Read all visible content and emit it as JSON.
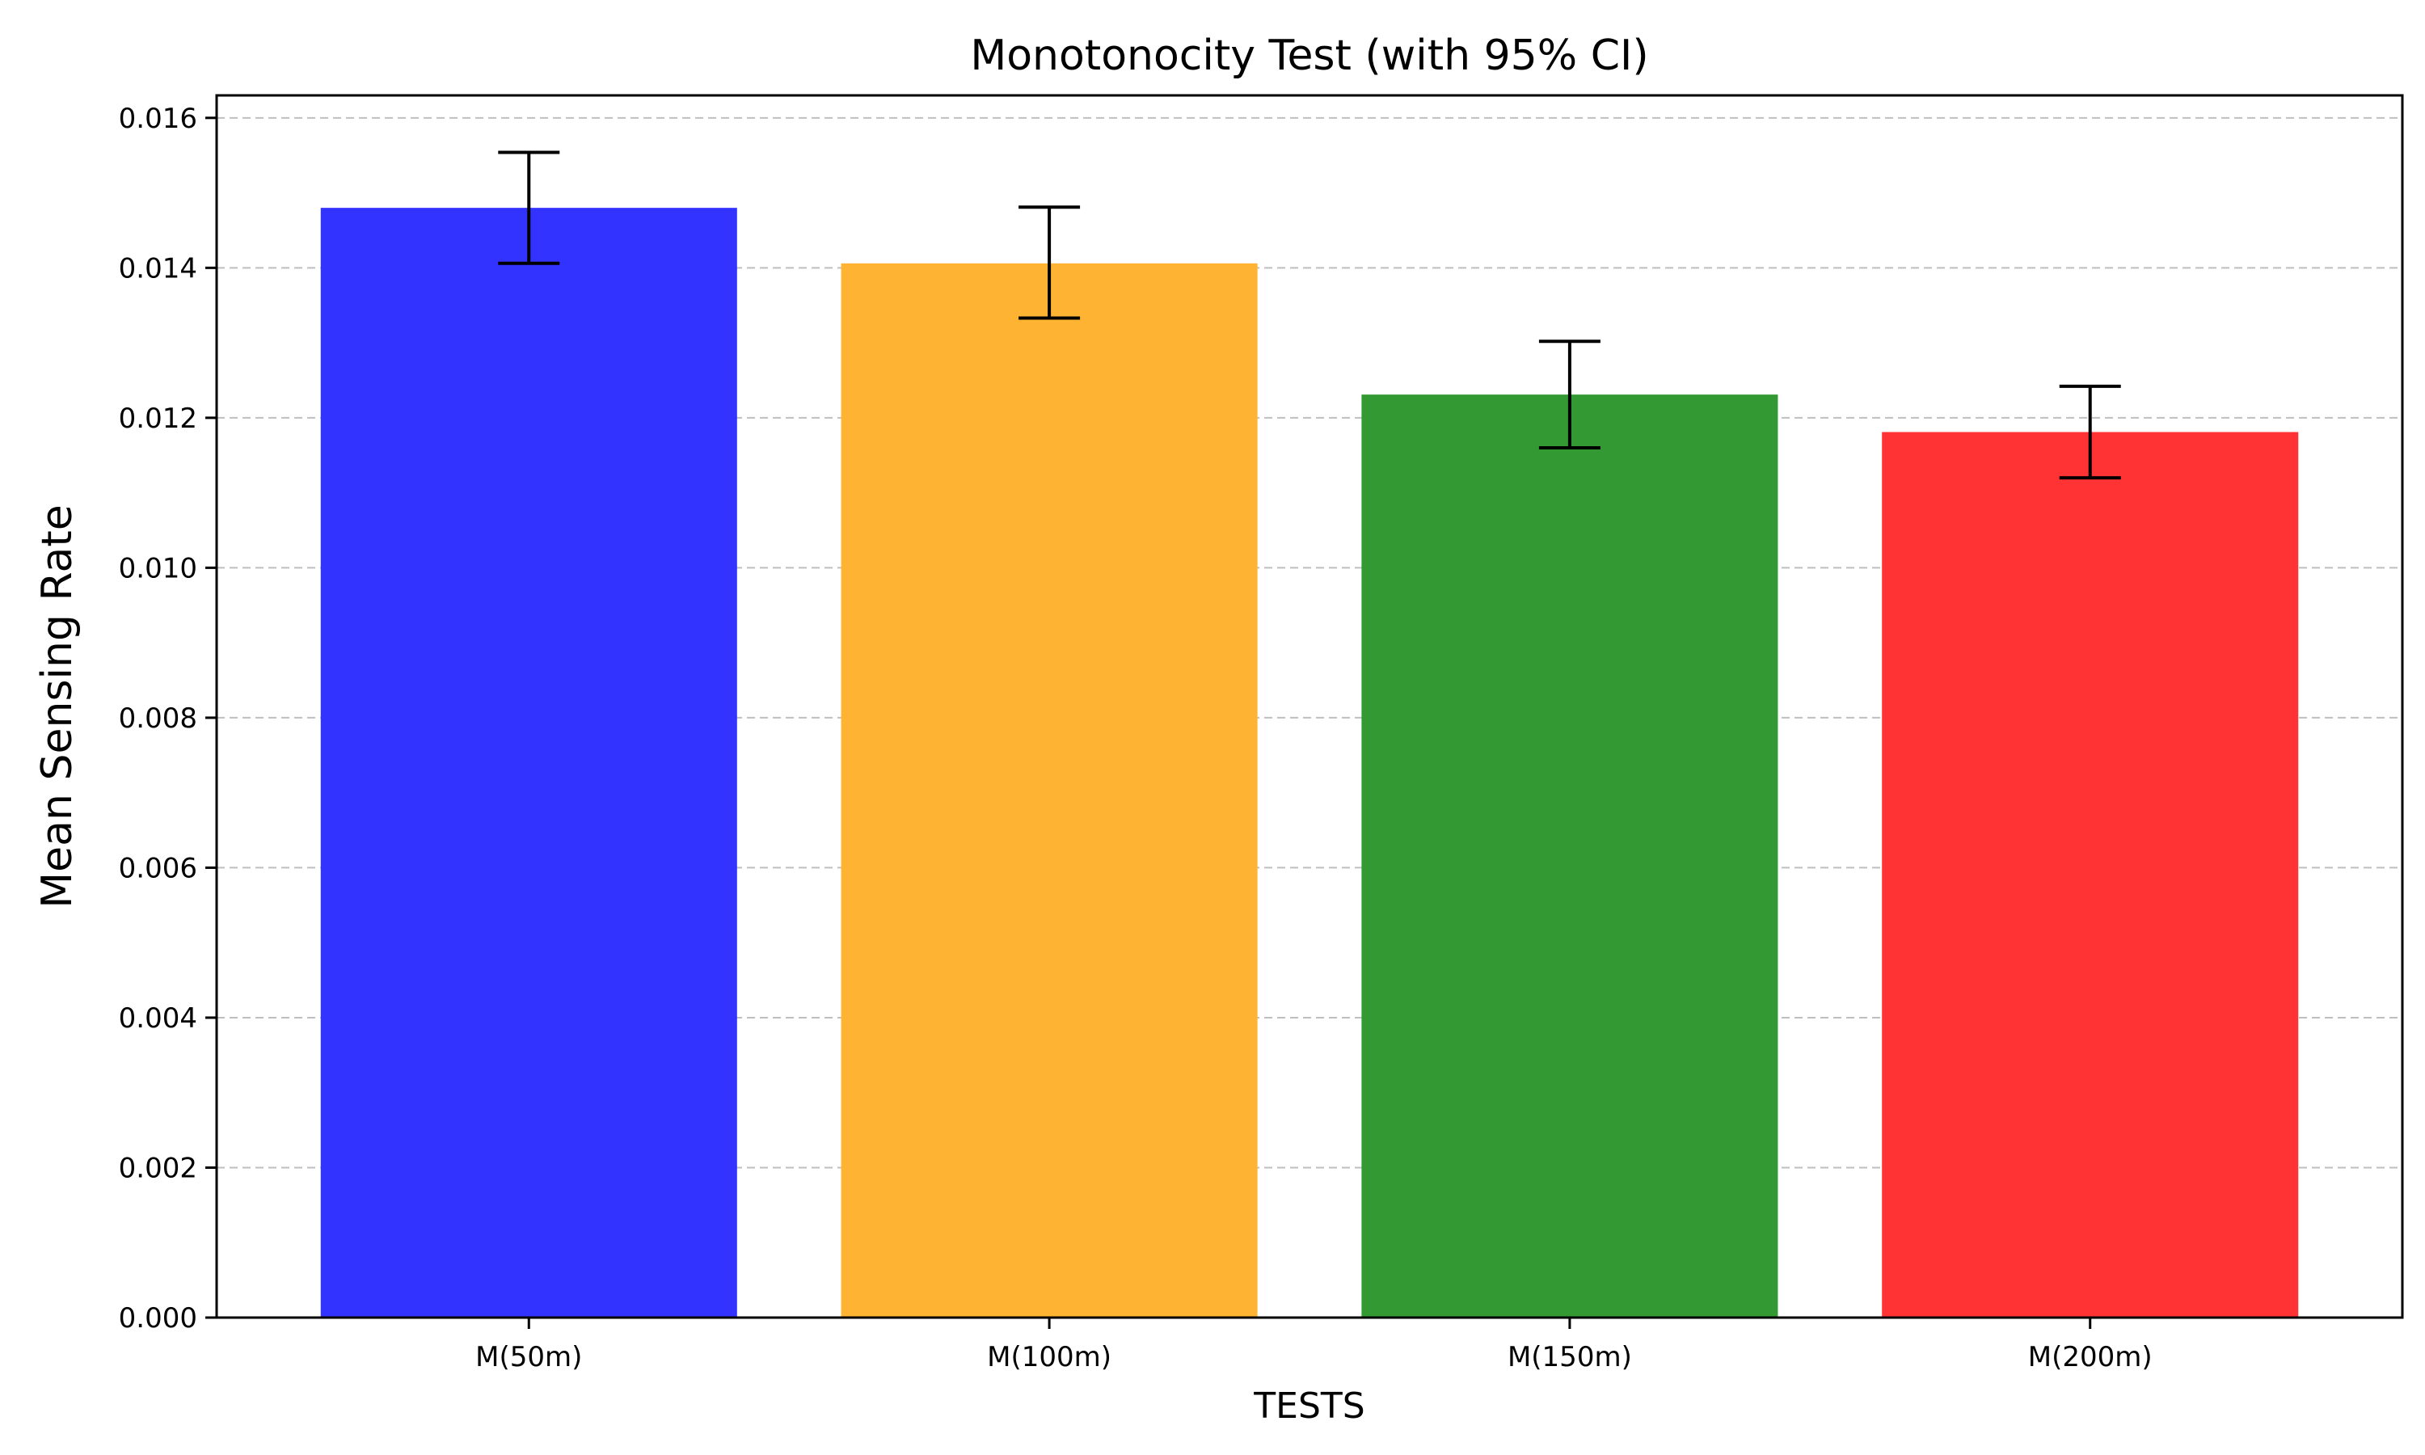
{
  "chart_data": {
    "type": "bar",
    "title": "Monotonocity Test (with 95% CI)",
    "xlabel": "TESTS",
    "ylabel": "Mean Sensing Rate",
    "categories": [
      "M(50m)",
      "M(100m)",
      "M(150m)",
      "M(200m)"
    ],
    "values": [
      0.0148,
      0.01406,
      0.01231,
      0.01181
    ],
    "ci_lower": [
      0.01406,
      0.01333,
      0.0116,
      0.0112
    ],
    "ci_upper": [
      0.01554,
      0.01481,
      0.01302,
      0.01242
    ],
    "colors": [
      "#3333ff",
      "#ffb333",
      "#339933",
      "#ff3333"
    ],
    "ylim": [
      0,
      0.0163
    ],
    "yticks": [
      0.0,
      0.002,
      0.004,
      0.006,
      0.008,
      0.01,
      0.012,
      0.014,
      0.016
    ],
    "ytick_labels": [
      "0.000",
      "0.002",
      "0.004",
      "0.006",
      "0.008",
      "0.010",
      "0.012",
      "0.014",
      "0.016"
    ],
    "grid": "y-dashed",
    "legend": "none"
  }
}
